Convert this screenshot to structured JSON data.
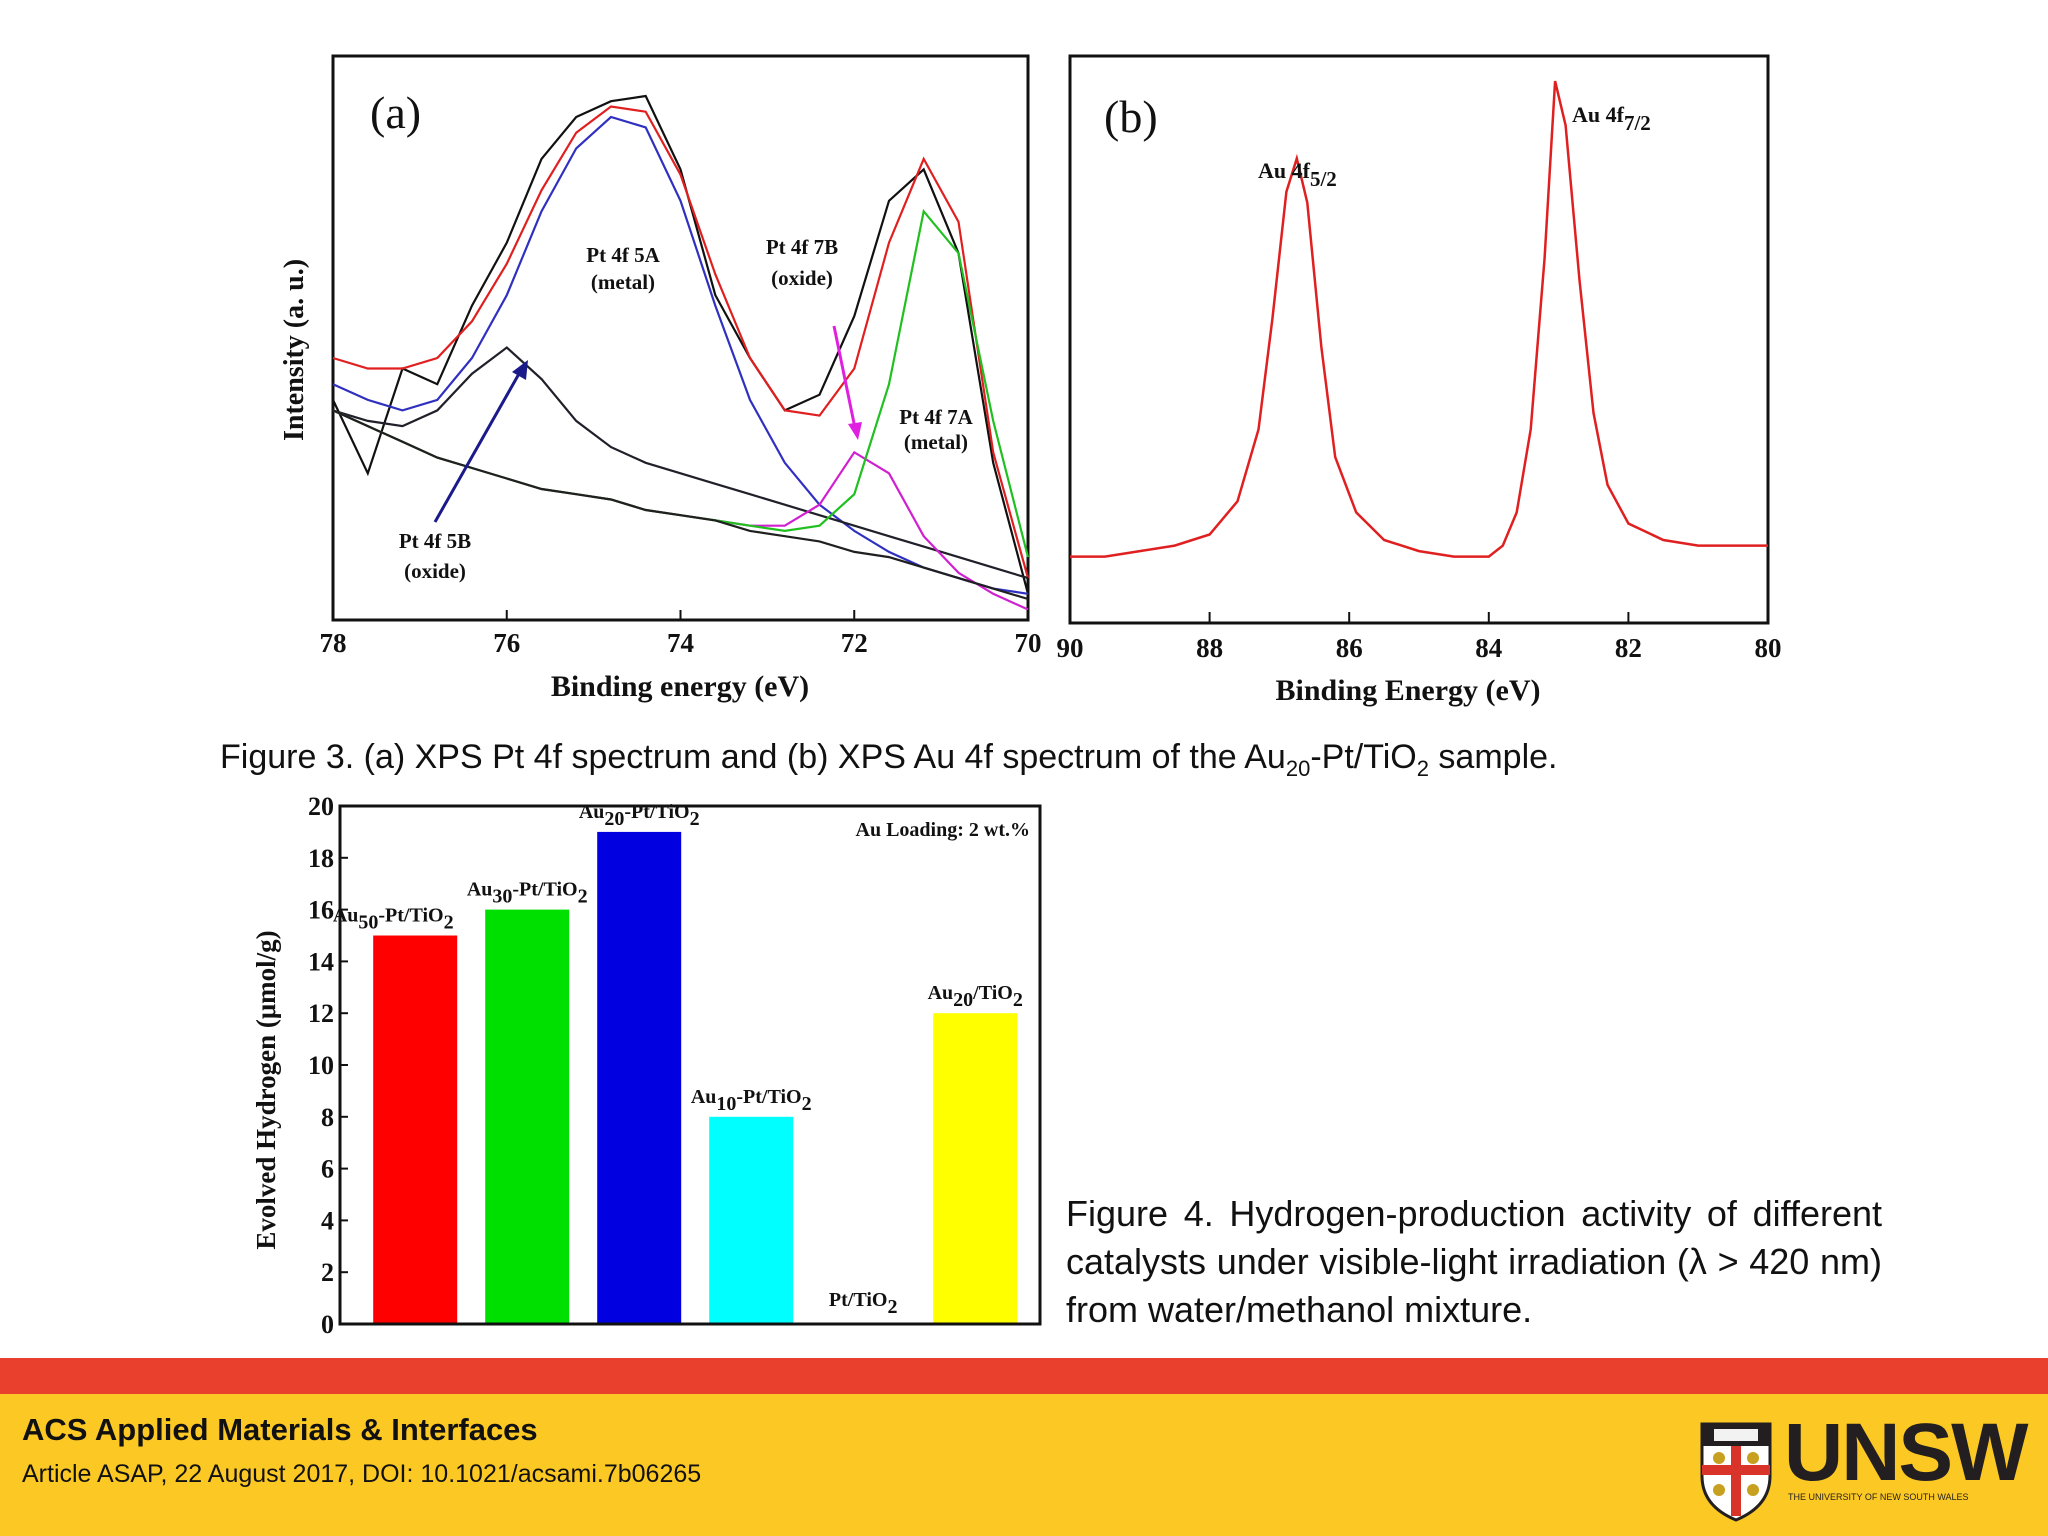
{
  "figure3": {
    "caption": {
      "pre": "Figure 3. (a) XPS Pt 4f spectrum and (b) XPS Au 4f spectrum of the Au",
      "sub1": "20",
      "mid": "-Pt/TiO",
      "sub2": "2",
      "post": " sample."
    },
    "panel_a": {
      "label": "(a)",
      "xlabel": "Binding energy (eV)",
      "ylabel": "Intensity (a. u.)",
      "xticks": [
        "78",
        "76",
        "74",
        "72",
        "70"
      ],
      "annotations": {
        "pt5a": [
          "Pt 4f 5A",
          "(metal)"
        ],
        "pt7b": [
          "Pt 4f 7B",
          "(oxide)"
        ],
        "pt7a": [
          "Pt 4f 7A",
          "(metal)"
        ],
        "pt5b": [
          "Pt 4f 5B",
          "(oxide)"
        ]
      }
    },
    "panel_b": {
      "label": "(b)",
      "xlabel": "Binding Energy (eV)",
      "xticks": [
        "90",
        "88",
        "86",
        "84",
        "82",
        "80"
      ],
      "peak1_main": "Au 4f",
      "peak1_sub": "5/2",
      "peak2_main": "Au 4f",
      "peak2_sub": "7/2"
    }
  },
  "figure4": {
    "caption": "Figure 4. Hydrogen-production activity of different catalysts under visible-light irradiation (λ > 420 nm) from water/methanol mixture.",
    "annotation": "Au Loading: 2 wt.%",
    "ylabel": "Evolved Hydrogen (μmol/g)"
  },
  "chart_data": [
    {
      "type": "line",
      "panel": "(a)",
      "xlabel": "Binding energy (eV)",
      "ylabel": "Intensity (a. u.)",
      "xlim": [
        78,
        70
      ],
      "x_reversed": true,
      "y_units": "arbitrary",
      "series": [
        {
          "color": "#111111",
          "x": [
            78,
            77.6,
            77.2,
            76.8,
            76.4,
            76.0,
            75.6,
            75.2,
            74.8,
            74.4,
            74.0,
            73.6,
            73.2,
            72.8,
            72.4,
            72.0,
            71.6,
            71.2,
            70.8,
            70.4,
            70.0
          ],
          "y": [
            0.42,
            0.28,
            0.48,
            0.45,
            0.6,
            0.72,
            0.88,
            0.96,
            0.99,
            1.0,
            0.86,
            0.62,
            0.5,
            0.4,
            0.43,
            0.58,
            0.8,
            0.86,
            0.7,
            0.3,
            0.05
          ]
        },
        {
          "color": "#e02020",
          "x": [
            78,
            77.6,
            77.2,
            76.8,
            76.4,
            76.0,
            75.6,
            75.2,
            74.8,
            74.4,
            74.0,
            73.6,
            73.2,
            72.8,
            72.4,
            72.0,
            71.6,
            71.2,
            70.8,
            70.4,
            70.0
          ],
          "y": [
            0.5,
            0.48,
            0.48,
            0.5,
            0.57,
            0.68,
            0.82,
            0.93,
            0.98,
            0.97,
            0.85,
            0.66,
            0.5,
            0.4,
            0.39,
            0.48,
            0.72,
            0.88,
            0.76,
            0.32,
            0.08
          ]
        },
        {
          "color": "#3030c0",
          "x": [
            78,
            77.6,
            77.2,
            76.8,
            76.4,
            76.0,
            75.6,
            75.2,
            74.8,
            74.4,
            74.0,
            73.6,
            73.2,
            72.8,
            72.4,
            72.0,
            71.6,
            71.2,
            70.8,
            70.4,
            70.0
          ],
          "y": [
            0.45,
            0.42,
            0.4,
            0.42,
            0.5,
            0.62,
            0.78,
            0.9,
            0.96,
            0.94,
            0.8,
            0.6,
            0.42,
            0.3,
            0.22,
            0.17,
            0.13,
            0.1,
            0.08,
            0.06,
            0.05
          ]
        },
        {
          "color": "#20202a",
          "x": [
            78,
            77.6,
            77.2,
            76.8,
            76.4,
            76.0,
            75.6,
            75.2,
            74.8,
            74.4,
            74.0,
            73.6,
            73.2,
            72.8,
            72.4,
            72.0,
            71.6,
            71.2,
            70.8,
            70.4,
            70.0
          ],
          "y": [
            0.4,
            0.38,
            0.37,
            0.4,
            0.47,
            0.52,
            0.46,
            0.38,
            0.33,
            0.3,
            0.28,
            0.26,
            0.24,
            0.22,
            0.2,
            0.18,
            0.16,
            0.14,
            0.12,
            0.1,
            0.08
          ]
        },
        {
          "color": "#d020d0",
          "x": [
            78,
            77.6,
            77.2,
            76.8,
            76.4,
            76.0,
            75.6,
            75.2,
            74.8,
            74.4,
            74.0,
            73.6,
            73.2,
            72.8,
            72.4,
            72.0,
            71.6,
            71.2,
            70.8,
            70.4,
            70.0
          ],
          "y": [
            0.4,
            0.37,
            0.34,
            0.31,
            0.29,
            0.27,
            0.25,
            0.24,
            0.23,
            0.21,
            0.2,
            0.19,
            0.18,
            0.18,
            0.22,
            0.32,
            0.28,
            0.16,
            0.09,
            0.05,
            0.02
          ]
        },
        {
          "color": "#20c020",
          "x": [
            78,
            77.6,
            77.2,
            76.8,
            76.4,
            76.0,
            75.6,
            75.2,
            74.8,
            74.4,
            74.0,
            73.6,
            73.2,
            72.8,
            72.4,
            72.0,
            71.6,
            71.2,
            70.8,
            70.4,
            70.0
          ],
          "y": [
            0.4,
            0.37,
            0.34,
            0.31,
            0.29,
            0.27,
            0.25,
            0.24,
            0.23,
            0.21,
            0.2,
            0.19,
            0.18,
            0.17,
            0.18,
            0.24,
            0.45,
            0.78,
            0.7,
            0.38,
            0.12
          ]
        },
        {
          "color": "#202020",
          "x": [
            78,
            77.6,
            77.2,
            76.8,
            76.4,
            76.0,
            75.6,
            75.2,
            74.8,
            74.4,
            74.0,
            73.6,
            73.2,
            72.8,
            72.4,
            72.0,
            71.6,
            71.2,
            70.8,
            70.4,
            70.0
          ],
          "y": [
            0.4,
            0.37,
            0.34,
            0.31,
            0.29,
            0.27,
            0.25,
            0.24,
            0.23,
            0.21,
            0.2,
            0.19,
            0.17,
            0.16,
            0.15,
            0.13,
            0.12,
            0.1,
            0.08,
            0.06,
            0.04
          ]
        }
      ]
    },
    {
      "type": "line",
      "panel": "(b)",
      "xlabel": "Binding Energy (eV)",
      "xlim": [
        90,
        80
      ],
      "x_reversed": true,
      "y_units": "arbitrary",
      "series": [
        {
          "color": "#e02020",
          "x": [
            90,
            89.5,
            89,
            88.5,
            88,
            87.6,
            87.3,
            87.1,
            86.9,
            86.75,
            86.6,
            86.4,
            86.2,
            85.9,
            85.5,
            85,
            84.5,
            84,
            83.8,
            83.6,
            83.4,
            83.2,
            83.05,
            82.9,
            82.7,
            82.5,
            82.3,
            82.0,
            81.5,
            81,
            80.5,
            80
          ],
          "y": [
            0.12,
            0.12,
            0.13,
            0.14,
            0.16,
            0.22,
            0.35,
            0.55,
            0.78,
            0.84,
            0.76,
            0.5,
            0.3,
            0.2,
            0.15,
            0.13,
            0.12,
            0.12,
            0.14,
            0.2,
            0.35,
            0.66,
            0.98,
            0.9,
            0.62,
            0.38,
            0.25,
            0.18,
            0.15,
            0.14,
            0.14,
            0.14
          ]
        }
      ]
    },
    {
      "type": "bar",
      "ylabel": "Evolved Hydrogen (μmol/g)",
      "ylim": [
        0,
        20
      ],
      "yticks": [
        0,
        2,
        4,
        6,
        8,
        10,
        12,
        14,
        16,
        18,
        20
      ],
      "categories": [
        "Au50-Pt/TiO2",
        "Au30-Pt/TiO2",
        "Au20-Pt/TiO2",
        "Au10-Pt/TiO2",
        "Pt/TiO2",
        "Au20/TiO2"
      ],
      "values": [
        15,
        16,
        19,
        8,
        0,
        12
      ],
      "colors": [
        "#ff0000",
        "#00e000",
        "#0000e0",
        "#00ffff",
        "#ffffff",
        "#ffff00"
      ],
      "annotation": "Au Loading: 2 wt.%"
    }
  ],
  "labels": {
    "bars": [
      {
        "pre": "Au",
        "sub1": "50",
        "mid": "-Pt/TiO",
        "sub2": "2"
      },
      {
        "pre": "Au",
        "sub1": "30",
        "mid": "-Pt/TiO",
        "sub2": "2"
      },
      {
        "pre": "Au",
        "sub1": "20",
        "mid": "-Pt/TiO",
        "sub2": "2"
      },
      {
        "pre": "Au",
        "sub1": "10",
        "mid": "-Pt/TiO",
        "sub2": "2"
      },
      {
        "pre": "",
        "sub1": "",
        "mid": "Pt/TiO",
        "sub2": "2"
      },
      {
        "pre": "Au",
        "sub1": "20",
        "mid": "/TiO",
        "sub2": "2"
      }
    ]
  },
  "footer": {
    "journal": "ACS Applied Materials & Interfaces",
    "article": "Article ASAP, 22 August 2017, DOI: 10.1021/acsami.7b06265",
    "logo_text": "UNSW",
    "logo_subtext": "THE UNIVERSITY OF NEW SOUTH WALES",
    "logo_icon": "unsw-crest-icon",
    "colors": {
      "band": "#e8402c",
      "footer": "#fcc823"
    }
  }
}
